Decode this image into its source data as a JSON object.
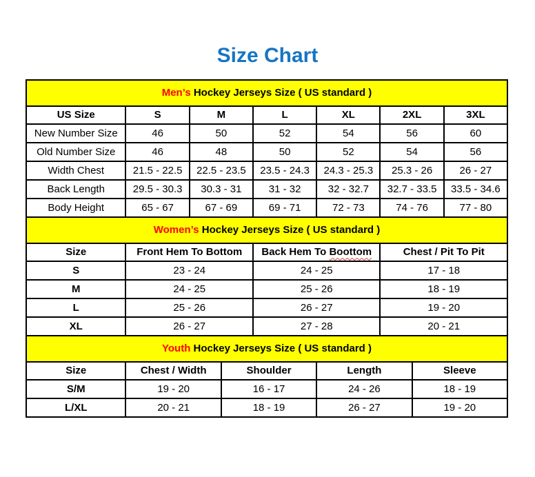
{
  "title": "Size Chart",
  "colors": {
    "title_blue": "#1775C3",
    "section_yellow": "#FFFF00",
    "accent_red": "#FF0000",
    "border_black": "#000000"
  },
  "tables": [
    {
      "id": "mens",
      "section": {
        "prefix": "Men’s",
        "rest": " Hockey Jerseys Size ( US standard )"
      },
      "columns": [
        "US Size",
        "S",
        "M",
        "L",
        "XL",
        "2XL",
        "3XL"
      ],
      "rows": [
        {
          "label": "New Number Size",
          "values": [
            "46",
            "50",
            "52",
            "54",
            "56",
            "60"
          ]
        },
        {
          "label": "Old Number Size",
          "values": [
            "46",
            "48",
            "50",
            "52",
            "54",
            "56"
          ]
        },
        {
          "label": "Width Chest",
          "values": [
            "21.5 - 22.5",
            "22.5 - 23.5",
            "23.5 - 24.3",
            "24.3 - 25.3",
            "25.3 - 26",
            "26 - 27"
          ]
        },
        {
          "label": "Back Length",
          "values": [
            "29.5 - 30.3",
            "30.3 - 31",
            "31 - 32",
            "32 - 32.7",
            "32.7 - 33.5",
            "33.5 - 34.6"
          ]
        },
        {
          "label": "Body Height",
          "values": [
            "65 - 67",
            "67 - 69",
            "69 - 71",
            "72 - 73",
            "74 - 76",
            "77 - 80"
          ]
        }
      ]
    },
    {
      "id": "womens",
      "section": {
        "prefix": "Women’s",
        "rest": " Hockey Jerseys Size ( US standard )"
      },
      "columns": [
        "Size",
        "Front Hem To Bottom",
        "Back Hem To Boottom",
        "Chest / Pit To Pit"
      ],
      "spellcheck": {
        "column": 2,
        "word": "Boottom"
      },
      "rows": [
        {
          "label": "S",
          "values": [
            "23 - 24",
            "24 - 25",
            "17 - 18"
          ]
        },
        {
          "label": "M",
          "values": [
            "24 - 25",
            "25 - 26",
            "18 - 19"
          ]
        },
        {
          "label": "L",
          "values": [
            "25 - 26",
            "26 - 27",
            "19 - 20"
          ]
        },
        {
          "label": "XL",
          "values": [
            "26 - 27",
            "27 - 28",
            "20 - 21"
          ]
        }
      ]
    },
    {
      "id": "youth",
      "section": {
        "prefix": "Youth",
        "rest": " Hockey Jerseys Size ( US standard )"
      },
      "columns": [
        "Size",
        "Chest / Width",
        "Shoulder",
        "Length",
        "Sleeve"
      ],
      "rows": [
        {
          "label": "S/M",
          "values": [
            "19 - 20",
            "16 - 17",
            "24 - 26",
            "18 - 19"
          ]
        },
        {
          "label": "L/XL",
          "values": [
            "20 - 21",
            "18 - 19",
            "26 - 27",
            "19 - 20"
          ]
        }
      ]
    }
  ]
}
